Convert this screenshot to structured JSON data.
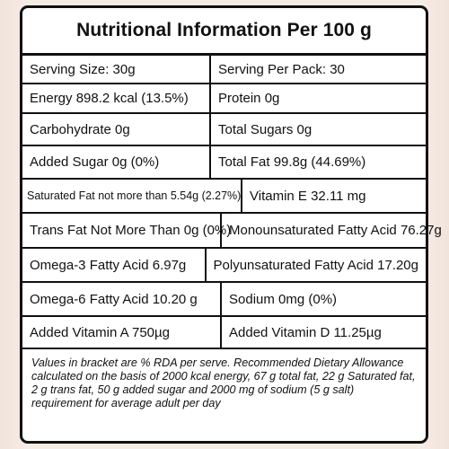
{
  "title": "Nutritional Information Per 100 g",
  "rows": [
    {
      "left": "Serving Size: 30g",
      "right": "Serving Per Pack: 30"
    },
    {
      "left": "Energy 898.2 kcal (13.5%)",
      "right": "Protein 0g"
    },
    {
      "left": "Carbohydrate 0g",
      "right": "Total Sugars 0g"
    },
    {
      "left": "Added Sugar 0g (0%)",
      "right": "Total Fat 99.8g (44.69%)"
    },
    {
      "left": "Saturated Fat not more than 5.54g (2.27%)",
      "right": "Vitamin E 32.11 mg"
    },
    {
      "left": "Trans Fat Not More Than 0g (0%)",
      "right": "Monounsaturated Fatty Acid 76.27g"
    },
    {
      "left": "Omega-3 Fatty Acid 6.97g",
      "right": "Polyunsaturated Fatty Acid 17.20g"
    },
    {
      "left": "Omega-6 Fatty Acid 10.20 g",
      "right": "Sodium 0mg (0%)"
    },
    {
      "left": "Added Vitamin A 750µg",
      "right": "Added Vitamin D 11.25µg"
    }
  ],
  "footnote": "Values in bracket are % RDA per serve. Recommended Dietary Allowance calculated on the basis of 2000 kcal energy, 67 g total fat, 22 g Saturated fat, 2 g trans fat, 50 g added sugar and 2000 mg of sodium (5 g salt) requirement for average adult per day"
}
